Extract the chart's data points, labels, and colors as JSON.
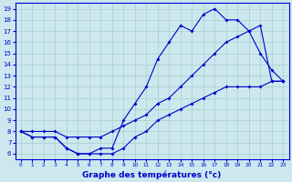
{
  "title": "Graphe des températures (°c)",
  "bg_color": "#cce8ee",
  "grid_color": "#aacccc",
  "line_color": "#0000cc",
  "hours": [
    0,
    1,
    2,
    3,
    4,
    5,
    6,
    7,
    8,
    9,
    10,
    11,
    12,
    13,
    14,
    15,
    16,
    17,
    18,
    19,
    20,
    21,
    22,
    23
  ],
  "line_upper": [
    8.0,
    7.5,
    7.5,
    7.5,
    6.5,
    6.0,
    6.0,
    6.5,
    6.5,
    9.0,
    10.5,
    12.0,
    14.5,
    16.0,
    17.5,
    17.0,
    18.5,
    19.0,
    18.0,
    18.0,
    17.0,
    15.0,
    13.5,
    12.5
  ],
  "line_mid": [
    8.0,
    8.0,
    8.0,
    8.0,
    7.5,
    7.5,
    7.5,
    7.5,
    8.0,
    8.5,
    9.0,
    9.5,
    10.5,
    11.0,
    12.0,
    13.0,
    14.0,
    15.0,
    16.0,
    16.5,
    17.0,
    17.5,
    12.5,
    12.5
  ],
  "line_lower": [
    8.0,
    7.5,
    7.5,
    7.5,
    6.5,
    6.0,
    6.0,
    6.0,
    6.0,
    6.5,
    7.5,
    8.0,
    9.0,
    9.5,
    10.0,
    10.5,
    11.0,
    11.5,
    12.0,
    12.0,
    12.0,
    12.0,
    12.5,
    12.5
  ],
  "ylim": [
    5.5,
    19.5
  ],
  "xlim": [
    -0.5,
    23.5
  ],
  "yticks": [
    6,
    7,
    8,
    9,
    10,
    11,
    12,
    13,
    14,
    15,
    16,
    17,
    18,
    19
  ],
  "xticks": [
    0,
    1,
    2,
    3,
    4,
    5,
    6,
    7,
    8,
    9,
    10,
    11,
    12,
    13,
    14,
    15,
    16,
    17,
    18,
    19,
    20,
    21,
    22,
    23
  ]
}
